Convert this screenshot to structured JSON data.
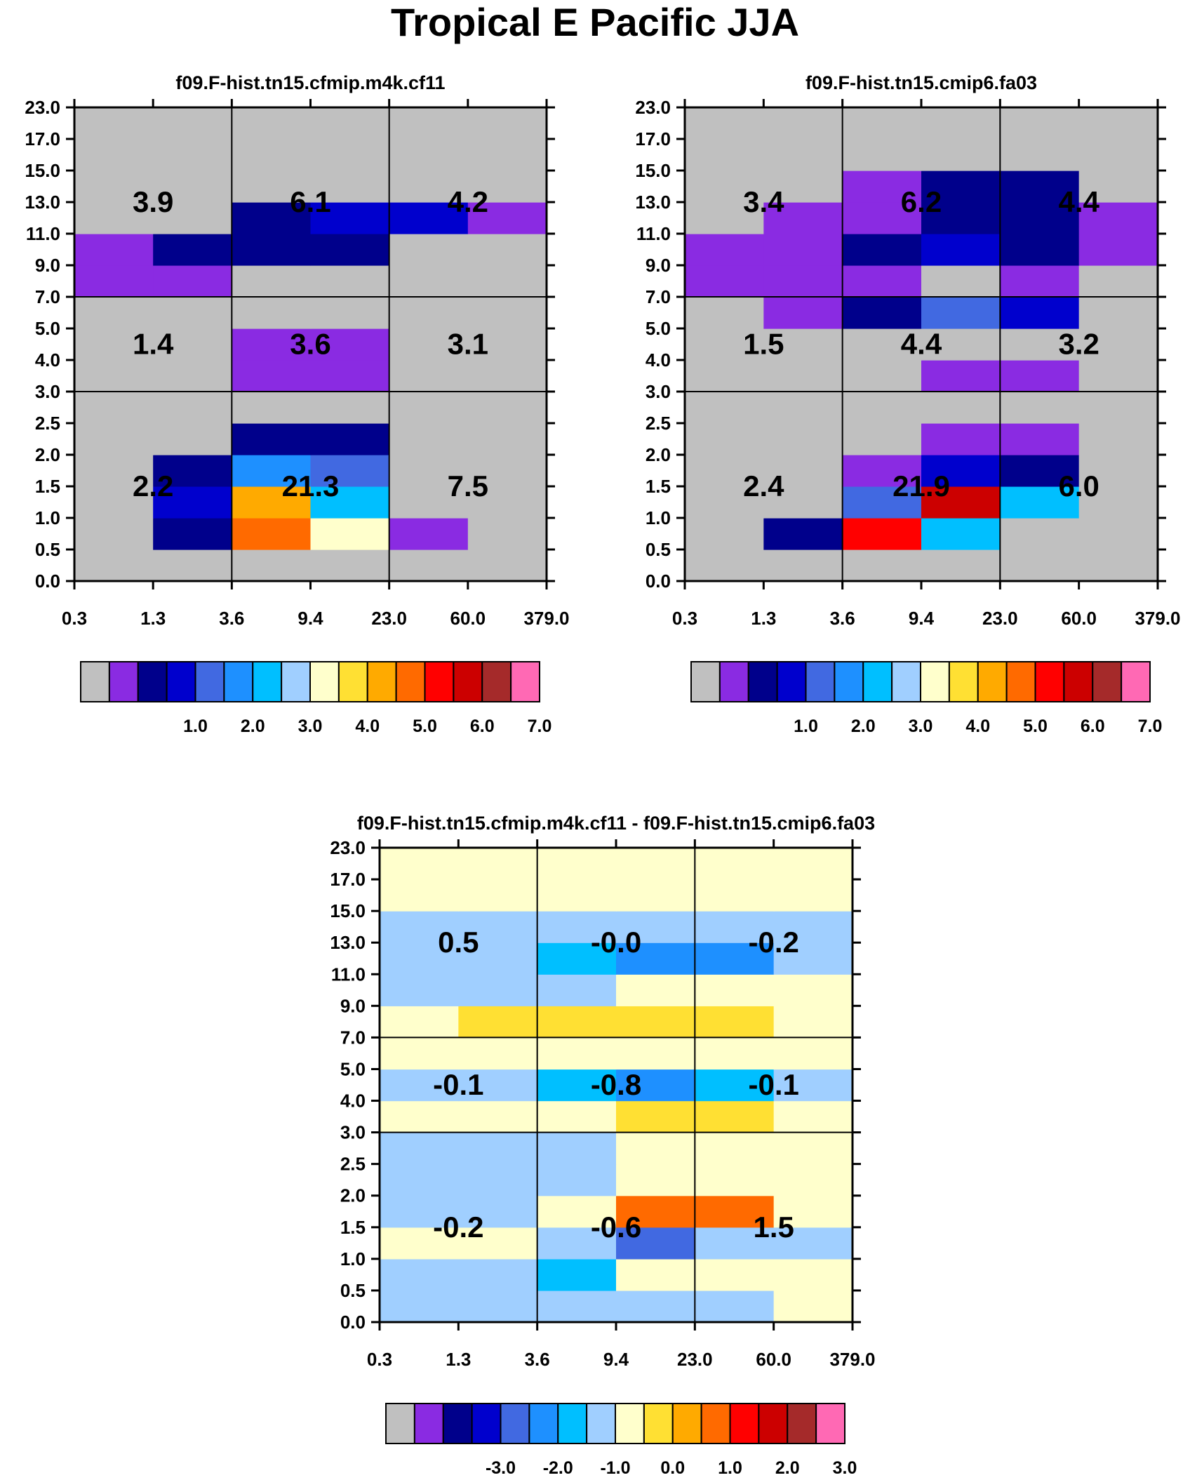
{
  "figure": {
    "title": "Tropical E Pacific JJA"
  },
  "chart_data": [
    {
      "type": "heatmap",
      "title": "f09.F-hist.tn15.cfmip.m4k.cf11",
      "x_ticks": [
        "0.3",
        "1.3",
        "3.6",
        "9.4",
        "23.0",
        "60.0",
        "379.0"
      ],
      "y_ticks": [
        "0.0",
        "0.5",
        "1.0",
        "1.5",
        "2.0",
        "2.5",
        "3.0",
        "4.0",
        "5.0",
        "7.0",
        "9.0",
        "11.0",
        "13.0",
        "15.0",
        "17.0",
        "23.0"
      ],
      "cells": [
        [
          0,
          0,
          0,
          0,
          0,
          0
        ],
        [
          0,
          2,
          11,
          8,
          1,
          0
        ],
        [
          0,
          3,
          10,
          6,
          0,
          0
        ],
        [
          0,
          2,
          5,
          4,
          0,
          0
        ],
        [
          0,
          0,
          2,
          2,
          0,
          0
        ],
        [
          0,
          0,
          0,
          0,
          0,
          0
        ],
        [
          0,
          0,
          1,
          1,
          0,
          0
        ],
        [
          0,
          0,
          1,
          1,
          0,
          0
        ],
        [
          0,
          0,
          0,
          0,
          0,
          0
        ],
        [
          1,
          1,
          0,
          0,
          0,
          0
        ],
        [
          1,
          2,
          2,
          2,
          0,
          0
        ],
        [
          0,
          0,
          2,
          3,
          3,
          1
        ],
        [
          0,
          0,
          0,
          0,
          0,
          0
        ],
        [
          0,
          0,
          0,
          0,
          0,
          0
        ],
        [
          0,
          0,
          0,
          0,
          0,
          0
        ]
      ],
      "block_labels": [
        {
          "value": "3.9",
          "row": "top",
          "col": "left"
        },
        {
          "value": "6.1",
          "row": "top",
          "col": "mid"
        },
        {
          "value": "4.2",
          "row": "top",
          "col": "right"
        },
        {
          "value": "1.4",
          "row": "middle",
          "col": "left"
        },
        {
          "value": "3.6",
          "row": "middle",
          "col": "mid"
        },
        {
          "value": "3.1",
          "row": "middle",
          "col": "right"
        },
        {
          "value": "2.2",
          "row": "bottom",
          "col": "left"
        },
        {
          "value": "21.3",
          "row": "bottom",
          "col": "mid"
        },
        {
          "value": "7.5",
          "row": "bottom",
          "col": "right"
        }
      ]
    },
    {
      "type": "heatmap",
      "title": "f09.F-hist.tn15.cmip6.fa03",
      "x_ticks": [
        "0.3",
        "1.3",
        "3.6",
        "9.4",
        "23.0",
        "60.0",
        "379.0"
      ],
      "y_ticks": [
        "0.0",
        "0.5",
        "1.0",
        "1.5",
        "2.0",
        "2.5",
        "3.0",
        "4.0",
        "5.0",
        "7.0",
        "9.0",
        "11.0",
        "13.0",
        "15.0",
        "17.0",
        "23.0"
      ],
      "cells": [
        [
          0,
          0,
          0,
          0,
          0,
          0
        ],
        [
          0,
          2,
          12,
          6,
          0,
          0
        ],
        [
          0,
          0,
          4,
          13,
          6,
          0
        ],
        [
          0,
          0,
          1,
          3,
          2,
          0
        ],
        [
          0,
          0,
          0,
          1,
          1,
          0
        ],
        [
          0,
          0,
          0,
          0,
          0,
          0
        ],
        [
          0,
          0,
          0,
          1,
          1,
          0
        ],
        [
          0,
          0,
          0,
          0,
          0,
          0
        ],
        [
          0,
          1,
          2,
          4,
          3,
          0
        ],
        [
          1,
          1,
          1,
          0,
          1,
          0
        ],
        [
          1,
          1,
          2,
          3,
          2,
          1
        ],
        [
          0,
          1,
          1,
          2,
          2,
          1
        ],
        [
          0,
          0,
          1,
          2,
          2,
          0
        ],
        [
          0,
          0,
          0,
          0,
          0,
          0
        ],
        [
          0,
          0,
          0,
          0,
          0,
          0
        ]
      ],
      "block_labels": [
        {
          "value": "3.4",
          "row": "top",
          "col": "left"
        },
        {
          "value": "6.2",
          "row": "top",
          "col": "mid"
        },
        {
          "value": "4.4",
          "row": "top",
          "col": "right"
        },
        {
          "value": "1.5",
          "row": "middle",
          "col": "left"
        },
        {
          "value": "4.4",
          "row": "middle",
          "col": "mid"
        },
        {
          "value": "3.2",
          "row": "middle",
          "col": "right"
        },
        {
          "value": "2.4",
          "row": "bottom",
          "col": "left"
        },
        {
          "value": "21.9",
          "row": "bottom",
          "col": "mid"
        },
        {
          "value": "6.0",
          "row": "bottom",
          "col": "right"
        }
      ]
    },
    {
      "type": "heatmap",
      "title": "f09.F-hist.tn15.cfmip.m4k.cf11 - f09.F-hist.tn15.cmip6.fa03",
      "x_ticks": [
        "0.3",
        "1.3",
        "3.6",
        "9.4",
        "23.0",
        "60.0",
        "379.0"
      ],
      "y_ticks": [
        "0.0",
        "0.5",
        "1.0",
        "1.5",
        "2.0",
        "2.5",
        "3.0",
        "4.0",
        "5.0",
        "7.0",
        "9.0",
        "11.0",
        "13.0",
        "15.0",
        "17.0",
        "23.0"
      ],
      "cells": [
        [
          7,
          7,
          7,
          7,
          7,
          8
        ],
        [
          7,
          7,
          6,
          8,
          8,
          8
        ],
        [
          8,
          8,
          7,
          4,
          7,
          7
        ],
        [
          7,
          7,
          8,
          11,
          11,
          8
        ],
        [
          7,
          7,
          7,
          8,
          8,
          8
        ],
        [
          7,
          7,
          7,
          8,
          8,
          8
        ],
        [
          8,
          8,
          8,
          9,
          9,
          8
        ],
        [
          7,
          7,
          6,
          5,
          6,
          7
        ],
        [
          8,
          8,
          8,
          8,
          8,
          8
        ],
        [
          8,
          9,
          9,
          9,
          9,
          8
        ],
        [
          7,
          7,
          7,
          8,
          8,
          8
        ],
        [
          7,
          7,
          6,
          5,
          5,
          7
        ],
        [
          7,
          7,
          7,
          7,
          7,
          7
        ],
        [
          8,
          8,
          8,
          8,
          8,
          8
        ],
        [
          8,
          8,
          8,
          8,
          8,
          8
        ]
      ],
      "block_labels": [
        {
          "value": "0.5",
          "row": "top",
          "col": "left"
        },
        {
          "value": "-0.0",
          "row": "top",
          "col": "mid"
        },
        {
          "value": "-0.2",
          "row": "top",
          "col": "right"
        },
        {
          "value": "-0.1",
          "row": "middle",
          "col": "left"
        },
        {
          "value": "-0.8",
          "row": "middle",
          "col": "mid"
        },
        {
          "value": "-0.1",
          "row": "middle",
          "col": "right"
        },
        {
          "value": "-0.2",
          "row": "bottom",
          "col": "left"
        },
        {
          "value": "-0.6",
          "row": "bottom",
          "col": "mid"
        },
        {
          "value": "1.5",
          "row": "bottom",
          "col": "right"
        }
      ]
    }
  ],
  "colorbars": [
    {
      "labels": [
        "1.0",
        "2.0",
        "3.0",
        "4.0",
        "5.0",
        "6.0",
        "7.0"
      ]
    },
    {
      "labels": [
        "1.0",
        "2.0",
        "3.0",
        "4.0",
        "5.0",
        "6.0",
        "7.0"
      ]
    },
    {
      "labels": [
        "-3.0",
        "-2.0",
        "-1.0",
        "0.0",
        "1.0",
        "2.0",
        "3.0"
      ]
    }
  ],
  "palette": [
    "#c0c0c0",
    "#8a2be2",
    "#00008b",
    "#0000cd",
    "#4169e1",
    "#1e90ff",
    "#00bfff",
    "#a0cfff",
    "#ffffcc",
    "#ffe033",
    "#ffaa00",
    "#ff6a00",
    "#ff0000",
    "#cc0000",
    "#a52a2a",
    "#ff69b4"
  ]
}
